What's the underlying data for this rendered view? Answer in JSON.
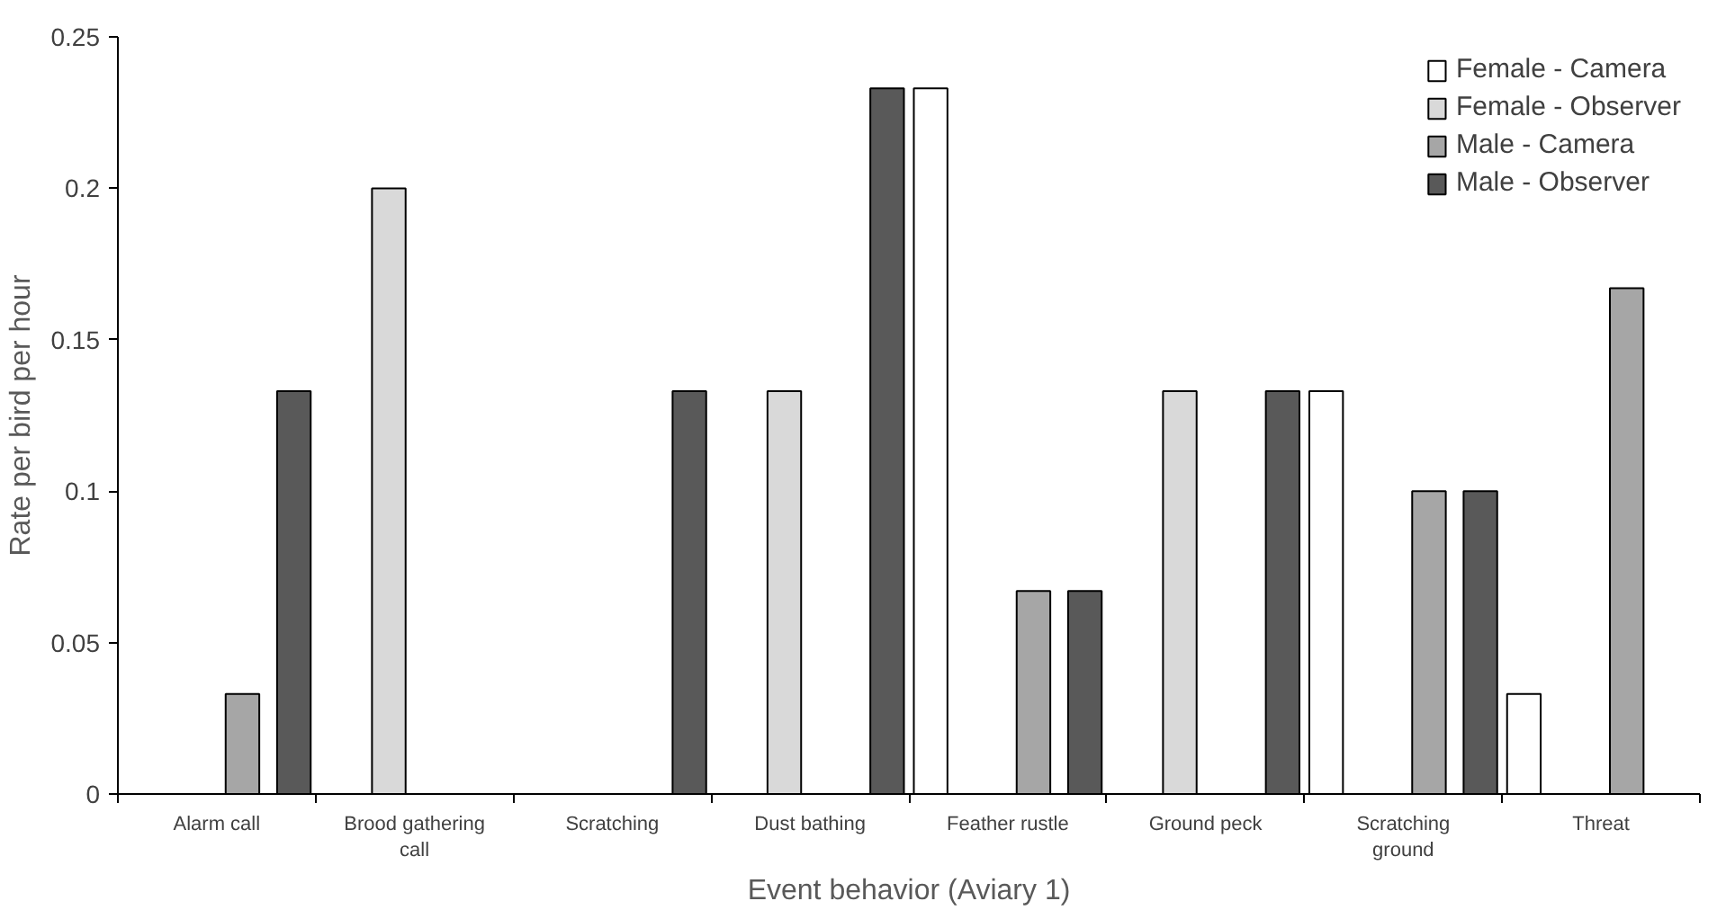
{
  "chart_data": {
    "type": "bar",
    "xlabel": "Event behavior (Aviary 1)",
    "ylabel": "Rate per bird per hour",
    "categories": [
      "Alarm call",
      "Brood gathering call",
      "Scratching",
      "Dust bathing",
      "Feather rustle",
      "Ground peck",
      "Scratching ground",
      "Threat"
    ],
    "series": [
      {
        "name": "Female - Camera",
        "color": "#ffffff",
        "values": [
          null,
          null,
          null,
          null,
          0.233,
          null,
          0.133,
          0.033
        ]
      },
      {
        "name": "Female - Observer",
        "color": "#d9d9d9",
        "values": [
          null,
          0.2,
          null,
          0.133,
          null,
          0.133,
          null,
          null
        ]
      },
      {
        "name": "Male - Camera",
        "color": "#a6a6a6",
        "values": [
          0.033,
          null,
          null,
          null,
          0.067,
          null,
          0.1,
          0.167
        ]
      },
      {
        "name": "Male - Observer",
        "color": "#595959",
        "values": [
          0.133,
          null,
          0.133,
          0.233,
          0.067,
          0.133,
          0.1,
          null
        ]
      }
    ],
    "ylim": [
      0,
      0.25
    ],
    "yticks": [
      0,
      0.05,
      0.1,
      0.15,
      0.2,
      0.25
    ],
    "grid": false,
    "legend": "top right"
  }
}
